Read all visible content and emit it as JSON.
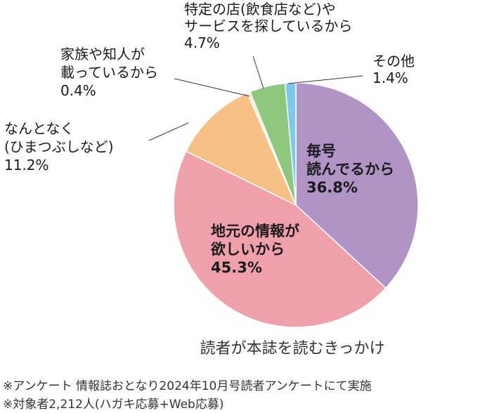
{
  "chart_data": {
    "type": "pie",
    "caption": "読者が本誌を読むきっかけ",
    "slices": [
      {
        "label": [
          "毎号",
          "読んでるから"
        ],
        "value": 36.8,
        "value_label": "36.8%",
        "color": "#b094c6"
      },
      {
        "label": [
          "地元の情報が",
          "欲しいから"
        ],
        "value": 45.3,
        "value_label": "45.3%",
        "color": "#f0a0aa"
      },
      {
        "label": [
          "なんとなく",
          "(ひまつぶしなど)"
        ],
        "value": 11.2,
        "value_label": "11.2%",
        "color": "#f6c184"
      },
      {
        "label": [
          "家族や知人が",
          "載っているから"
        ],
        "value": 0.4,
        "value_label": "0.4%",
        "color": "#f0ecd6"
      },
      {
        "label": [
          "特定の店(飲食店など)や",
          "サービスを探しているから"
        ],
        "value": 4.7,
        "value_label": "4.7%",
        "color": "#8cc87e"
      },
      {
        "label": [
          "その他"
        ],
        "value": 1.4,
        "value_label": "1.4%",
        "color": "#7ec8ee"
      }
    ]
  },
  "notes": [
    "※アンケート 情報誌おとなり2024年10月号読者アンケートにて実施",
    "※対象者2,212人(ハガキ応募+Web応募)"
  ]
}
